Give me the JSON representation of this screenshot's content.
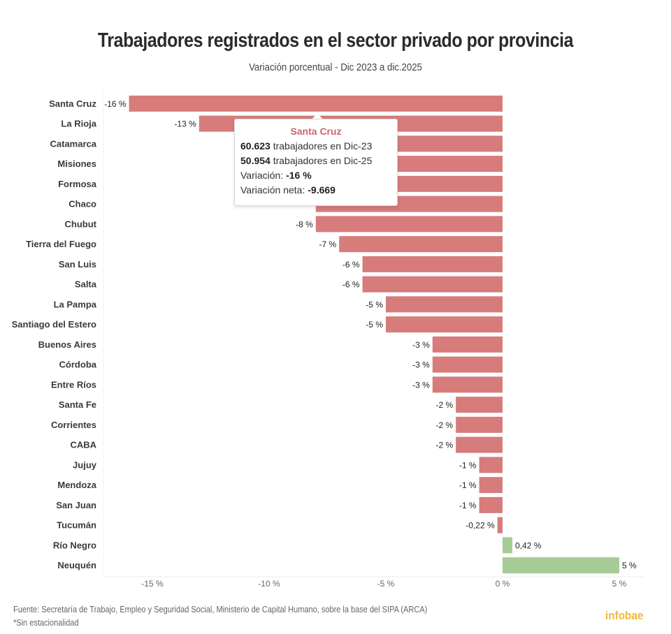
{
  "header": {
    "title": "Trabajadores registrados en el sector privado por provincia",
    "subtitle": "Variación porcentual - Dic 2023 a dic.2025"
  },
  "tooltip": {
    "title": "Santa Cruz",
    "line1_value": "60.623",
    "line1_text": " trabajadores en Dic-23",
    "line2_value": "50.954",
    "line2_text": " trabajadores en Dic-25",
    "line3_label": "Variación: ",
    "line3_value": "-16 %",
    "line4_label": "Variación neta: ",
    "line4_value": "-9.669"
  },
  "footer": {
    "source": "Fuente: Secretaría de Trabajo, Empleo y Seguridad Social, Ministerio de Capital Humano, sobre la base del SIPA (ARCA)",
    "note": "*Sin estacionalidad",
    "logo": "infobae"
  },
  "colors": {
    "negative": "#d77b7b",
    "positive": "#a4cc94",
    "tooltip_title": "#c9676b",
    "logo": "#f2b63c"
  },
  "chart_data": {
    "type": "bar",
    "orientation": "horizontal",
    "title": "Trabajadores registrados en el sector privado por provincia",
    "subtitle": "Variación porcentual - Dic 2023 a dic.2025",
    "xlabel": "",
    "ylabel": "",
    "xlim": [
      -17,
      6
    ],
    "x_ticks": [
      -15,
      -10,
      -5,
      0,
      5
    ],
    "x_tick_labels": [
      "-15 %",
      "-10 %",
      "-5 %",
      "0 %",
      "5 %"
    ],
    "grid": false,
    "legend": "none",
    "categories": [
      "Santa Cruz",
      "La Rioja",
      "Catamarca",
      "Misiones",
      "Formosa",
      "Chaco",
      "Chubut",
      "Tierra del Fuego",
      "San Luis",
      "Salta",
      "La Pampa",
      "Santiago del Estero",
      "Buenos Aires",
      "Córdoba",
      "Entre Ríos",
      "Santa Fe",
      "Corrientes",
      "CABA",
      "Jujuy",
      "Mendoza",
      "San Juan",
      "Tucumán",
      "Río Negro",
      "Neuquén"
    ],
    "values": [
      -16,
      -13,
      -11,
      -10,
      -9,
      -8,
      -8,
      -7,
      -6,
      -6,
      -5,
      -5,
      -3,
      -3,
      -3,
      -2,
      -2,
      -2,
      -1,
      -1,
      -1,
      -0.22,
      0.42,
      5
    ],
    "value_labels": [
      "-16 %",
      "-13 %",
      "",
      "",
      "",
      "",
      "-8 %",
      "-7 %",
      "-6 %",
      "-6 %",
      "-5 %",
      "-5 %",
      "-3 %",
      "-3 %",
      "-3 %",
      "-2 %",
      "-2 %",
      "-2 %",
      "-1 %",
      "-1 %",
      "-1 %",
      "-0,22 %",
      "0,42 %",
      "5 %"
    ]
  }
}
